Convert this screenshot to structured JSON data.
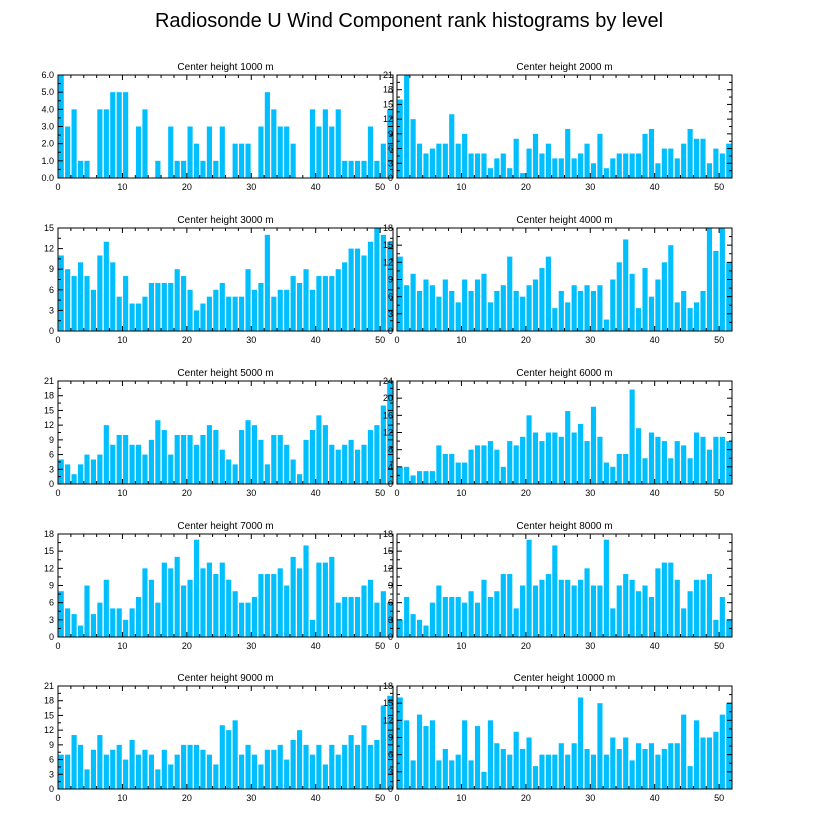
{
  "title": "Radiosonde U Wind Component rank histograms by level",
  "colors": {
    "bar": "#00bfff",
    "axis": "#000000",
    "background": "#ffffff"
  },
  "chart_data": [
    {
      "type": "bar",
      "title": "Center height 1000 m",
      "ylim": [
        0,
        6
      ],
      "yticks": [
        0,
        1,
        2,
        3,
        4,
        5,
        6
      ],
      "ytick_labels": [
        "0.0",
        "1.0",
        "2.0",
        "3.0",
        "4.0",
        "5.0",
        "6.0"
      ],
      "xlim": [
        0,
        52
      ],
      "xticks": [
        0,
        10,
        20,
        30,
        40,
        50
      ],
      "values": [
        6,
        3,
        4,
        1,
        1,
        0,
        4,
        4,
        5,
        5,
        5,
        0,
        3,
        4,
        0,
        1,
        0,
        3,
        1,
        1,
        3,
        2,
        1,
        3,
        1,
        3,
        0,
        2,
        2,
        2,
        0,
        3,
        5,
        4,
        3,
        3,
        2,
        0,
        0,
        4,
        3,
        4,
        3,
        4,
        1,
        1,
        1,
        1,
        3,
        1,
        2,
        4
      ]
    },
    {
      "type": "bar",
      "title": "Center height 2000 m",
      "ylim": [
        0,
        21
      ],
      "yticks": [
        0,
        3,
        6,
        9,
        12,
        15,
        18,
        21
      ],
      "ytick_labels": [
        "0",
        "3",
        "6",
        "9",
        "12",
        "15",
        "18",
        "21"
      ],
      "xlim": [
        0,
        52
      ],
      "xticks": [
        0,
        10,
        20,
        30,
        40,
        50
      ],
      "values": [
        16,
        21,
        12,
        7,
        5,
        6,
        7,
        7,
        13,
        7,
        9,
        5,
        5,
        5,
        2,
        4,
        5,
        2,
        8,
        1,
        6,
        9,
        5,
        7,
        4,
        4,
        10,
        4,
        5,
        7,
        3,
        9,
        2,
        4,
        5,
        5,
        5,
        5,
        9,
        10,
        3,
        6,
        6,
        4,
        7,
        10,
        8,
        8,
        3,
        6,
        5,
        7
      ]
    },
    {
      "type": "bar",
      "title": "Center height 3000 m",
      "ylim": [
        0,
        15
      ],
      "yticks": [
        0,
        3,
        6,
        9,
        12,
        15
      ],
      "ytick_labels": [
        "0",
        "3",
        "6",
        "9",
        "12",
        "15"
      ],
      "xlim": [
        0,
        52
      ],
      "xticks": [
        0,
        10,
        20,
        30,
        40,
        50
      ],
      "values": [
        11,
        9,
        8,
        10,
        8,
        6,
        11,
        13,
        10,
        5,
        8,
        4,
        4,
        5,
        7,
        7,
        7,
        7,
        9,
        8,
        6,
        3,
        4,
        5,
        6,
        7,
        5,
        5,
        5,
        9,
        6,
        7,
        14,
        5,
        6,
        6,
        8,
        7,
        9,
        6,
        8,
        8,
        8,
        9,
        10,
        12,
        12,
        11,
        13,
        15,
        14,
        13
      ]
    },
    {
      "type": "bar",
      "title": "Center height 4000 m",
      "ylim": [
        0,
        18
      ],
      "yticks": [
        0,
        3,
        6,
        9,
        12,
        15,
        18
      ],
      "ytick_labels": [
        "0",
        "3",
        "6",
        "9",
        "12",
        "15",
        "18"
      ],
      "xlim": [
        0,
        52
      ],
      "xticks": [
        0,
        10,
        20,
        30,
        40,
        50
      ],
      "values": [
        13,
        8,
        10,
        7,
        9,
        8,
        6,
        9,
        7,
        5,
        9,
        7,
        9,
        10,
        5,
        7,
        8,
        13,
        7,
        6,
        8,
        9,
        11,
        13,
        4,
        7,
        5,
        8,
        7,
        8,
        7,
        8,
        2,
        9,
        12,
        16,
        10,
        4,
        11,
        6,
        9,
        12,
        15,
        5,
        7,
        4,
        5,
        7,
        18,
        14,
        18,
        12
      ]
    },
    {
      "type": "bar",
      "title": "Center height 5000 m",
      "ylim": [
        0,
        21
      ],
      "yticks": [
        0,
        3,
        6,
        9,
        12,
        15,
        18,
        21
      ],
      "ytick_labels": [
        "0",
        "3",
        "6",
        "9",
        "12",
        "15",
        "18",
        "21"
      ],
      "xlim": [
        0,
        52
      ],
      "xticks": [
        0,
        10,
        20,
        30,
        40,
        50
      ],
      "values": [
        5,
        4,
        2,
        4,
        6,
        5,
        6,
        12,
        8,
        10,
        10,
        8,
        8,
        6,
        9,
        13,
        11,
        6,
        10,
        10,
        10,
        8,
        10,
        12,
        11,
        7,
        5,
        4,
        11,
        13,
        12,
        9,
        4,
        10,
        10,
        8,
        5,
        2,
        9,
        11,
        14,
        12,
        8,
        7,
        8,
        9,
        7,
        8,
        11,
        12,
        16,
        21
      ]
    },
    {
      "type": "bar",
      "title": "Center height 6000 m",
      "ylim": [
        0,
        24
      ],
      "yticks": [
        0,
        4,
        8,
        12,
        16,
        20,
        24
      ],
      "ytick_labels": [
        "0",
        "4",
        "8",
        "12",
        "16",
        "20",
        "24"
      ],
      "xlim": [
        0,
        52
      ],
      "xticks": [
        0,
        10,
        20,
        30,
        40,
        50
      ],
      "values": [
        4,
        4,
        2,
        3,
        3,
        3,
        9,
        7,
        7,
        5,
        5,
        8,
        9,
        9,
        10,
        8,
        4,
        10,
        9,
        11,
        16,
        12,
        10,
        12,
        12,
        11,
        17,
        12,
        14,
        10,
        18,
        11,
        5,
        4,
        7,
        7,
        22,
        13,
        6,
        12,
        11,
        10,
        6,
        10,
        9,
        6,
        12,
        11,
        8,
        11,
        11,
        10
      ]
    },
    {
      "type": "bar",
      "title": "Center height 7000 m",
      "ylim": [
        0,
        18
      ],
      "yticks": [
        0,
        3,
        6,
        9,
        12,
        15,
        18
      ],
      "ytick_labels": [
        "0",
        "3",
        "6",
        "9",
        "12",
        "15",
        "18"
      ],
      "xlim": [
        0,
        52
      ],
      "xticks": [
        0,
        10,
        20,
        30,
        40,
        50
      ],
      "values": [
        8,
        5,
        4,
        2,
        9,
        4,
        6,
        10,
        5,
        5,
        3,
        5,
        7,
        12,
        10,
        6,
        13,
        12,
        14,
        9,
        10,
        17,
        12,
        13,
        11,
        13,
        10,
        8,
        6,
        6,
        7,
        11,
        11,
        11,
        12,
        9,
        14,
        12,
        16,
        3,
        13,
        13,
        14,
        6,
        7,
        7,
        7,
        9,
        10,
        6,
        8,
        6
      ]
    },
    {
      "type": "bar",
      "title": "Center height 8000 m",
      "ylim": [
        0,
        18
      ],
      "yticks": [
        0,
        3,
        6,
        9,
        12,
        15,
        18
      ],
      "ytick_labels": [
        "0",
        "3",
        "6",
        "9",
        "12",
        "15",
        "18"
      ],
      "xlim": [
        0,
        52
      ],
      "xticks": [
        0,
        10,
        20,
        30,
        40,
        50
      ],
      "values": [
        3,
        7,
        4,
        3,
        2,
        6,
        9,
        7,
        7,
        7,
        6,
        8,
        6,
        10,
        7,
        8,
        11,
        11,
        5,
        9,
        17,
        9,
        10,
        11,
        16,
        10,
        10,
        9,
        10,
        12,
        9,
        9,
        17,
        5,
        9,
        11,
        10,
        8,
        9,
        7,
        12,
        13,
        13,
        10,
        5,
        8,
        10,
        10,
        11,
        3,
        7,
        3
      ]
    },
    {
      "type": "bar",
      "title": "Center height 9000 m",
      "ylim": [
        0,
        21
      ],
      "yticks": [
        0,
        3,
        6,
        9,
        12,
        15,
        18,
        21
      ],
      "ytick_labels": [
        "0",
        "3",
        "6",
        "9",
        "12",
        "15",
        "18",
        "21"
      ],
      "xlim": [
        0,
        52
      ],
      "xticks": [
        0,
        10,
        20,
        30,
        40,
        50
      ],
      "values": [
        7,
        7,
        11,
        9,
        4,
        8,
        11,
        7,
        8,
        9,
        6,
        10,
        7,
        8,
        7,
        4,
        8,
        5,
        7,
        9,
        9,
        9,
        8,
        7,
        5,
        13,
        12,
        14,
        7,
        9,
        7,
        5,
        8,
        8,
        9,
        6,
        10,
        12,
        9,
        7,
        9,
        5,
        9,
        7,
        9,
        11,
        9,
        13,
        9,
        10,
        17,
        19
      ]
    },
    {
      "type": "bar",
      "title": "Center height 10000 m",
      "ylim": [
        0,
        18
      ],
      "yticks": [
        0,
        3,
        6,
        9,
        12,
        15,
        18
      ],
      "ytick_labels": [
        "0",
        "3",
        "6",
        "9",
        "12",
        "15",
        "18"
      ],
      "xlim": [
        0,
        52
      ],
      "xticks": [
        0,
        10,
        20,
        30,
        40,
        50
      ],
      "values": [
        16,
        12,
        5,
        13,
        11,
        12,
        5,
        7,
        5,
        6,
        12,
        5,
        11,
        3,
        12,
        8,
        7,
        6,
        10,
        7,
        9,
        4,
        6,
        6,
        6,
        8,
        6,
        8,
        16,
        7,
        6,
        15,
        6,
        9,
        7,
        9,
        5,
        8,
        7,
        8,
        6,
        7,
        8,
        8,
        13,
        4,
        12,
        9,
        9,
        10,
        13,
        15
      ]
    }
  ]
}
